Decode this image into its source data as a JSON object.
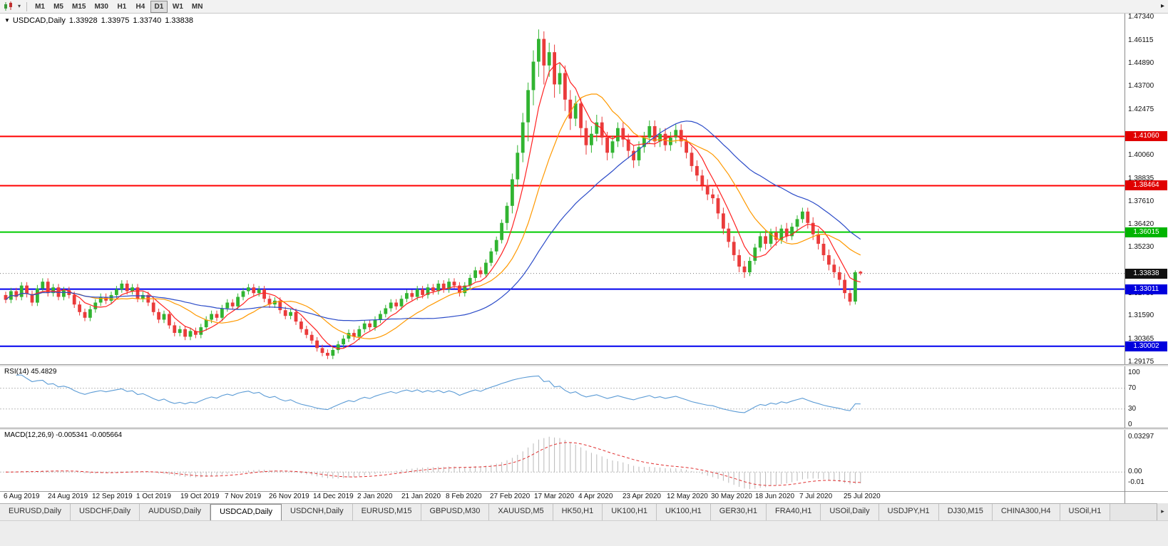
{
  "toolbar": {
    "timeframes": [
      "M1",
      "M5",
      "M15",
      "M30",
      "H1",
      "H4",
      "D1",
      "W1",
      "MN"
    ],
    "active_timeframe": "D1",
    "dropdown_arrow": "▾",
    "overflow_arrow": "▸"
  },
  "chart_header": {
    "menu_arrow": "▼",
    "title": "USDCAD,Daily",
    "open": "1.33928",
    "high": "1.33975",
    "low": "1.33740",
    "close": "1.33838"
  },
  "rsi_panel": {
    "title": "RSI(14)",
    "value": "45.4829",
    "axis_labels": [
      "100",
      "70",
      "30",
      "0"
    ],
    "levels": [
      70,
      30
    ],
    "line_color": "#5b9bd5"
  },
  "macd_panel": {
    "title": "MACD(12,26,9)",
    "values": "-0.005341 -0.005664",
    "axis_labels": [
      "0.03297",
      "0.00",
      "-0.01"
    ],
    "histogram_color": "#b9b9b9",
    "signal_color": "#e03030"
  },
  "price_axis_badges": [
    {
      "text": "1.41060",
      "color": "#e00000"
    },
    {
      "text": "1.38464",
      "color": "#e00000"
    },
    {
      "text": "1.36015",
      "color": "#00b400"
    },
    {
      "text": "1.33838",
      "color": "#111111"
    },
    {
      "text": "1.33011",
      "color": "#0000dd"
    },
    {
      "text": "1.30002",
      "color": "#0000dd"
    }
  ],
  "tabs": {
    "items": [
      "EURUSD,Daily",
      "USDCHF,Daily",
      "AUDUSD,Daily",
      "USDCAD,Daily",
      "USDCNH,Daily",
      "EURUSD,M15",
      "GBPUSD,M30",
      "XAUUSD,M5",
      "HK50,H1",
      "UK100,H1",
      "UK100,H1",
      "GER30,H1",
      "FRA40,H1",
      "USOil,Daily",
      "USDJPY,H1",
      "DJ30,M15",
      "CHINA300,H4",
      "USOil,H1"
    ],
    "active": "USDCAD,Daily",
    "scroll_arrow": "▸"
  },
  "chart_data": {
    "type": "candlestick",
    "title": "USDCAD,Daily",
    "ylim": [
      1.2905,
      1.475
    ],
    "y_ticks": [
      "1.47340",
      "1.46115",
      "1.44890",
      "1.43700",
      "1.42475",
      "1.40060",
      "1.38835",
      "1.37610",
      "1.36420",
      "1.35230",
      "1.32780",
      "1.31590",
      "1.30365",
      "1.29175"
    ],
    "x_labels": [
      "6 Aug 2019",
      "24 Aug 2019",
      "12 Sep 2019",
      "1 Oct 2019",
      "19 Oct 2019",
      "7 Nov 2019",
      "26 Nov 2019",
      "14 Dec 2019",
      "2 Jan 2020",
      "21 Jan 2020",
      "8 Feb 2020",
      "27 Feb 2020",
      "17 Mar 2020",
      "4 Apr 2020",
      "23 Apr 2020",
      "12 May 2020",
      "30 May 2020",
      "18 Jun 2020",
      "7 Jul 2020",
      "25 Jul 2020"
    ],
    "up_color": "#31b431",
    "down_color": "#ea3b3b",
    "hlines": [
      {
        "price": 1.4106,
        "color": "#ff0000",
        "width": 2
      },
      {
        "price": 1.38464,
        "color": "#ff0000",
        "width": 2
      },
      {
        "price": 1.36015,
        "color": "#00cc00",
        "width": 2
      },
      {
        "price": 1.33011,
        "color": "#0000ee",
        "width": 2
      },
      {
        "price": 1.30002,
        "color": "#0000ee",
        "width": 2
      }
    ],
    "current_price": 1.33838,
    "moving_averages": [
      {
        "period": 6,
        "color": "#ff2222"
      },
      {
        "period": 14,
        "color": "#ff9900"
      },
      {
        "period": 33,
        "color": "#2b4bc8"
      }
    ],
    "indicators": {
      "rsi": {
        "period": 14,
        "current": 45.4829
      },
      "macd": {
        "fast": 12,
        "slow": 26,
        "signal": 9,
        "current_macd": -0.005341,
        "current_signal": -0.005664
      },
      "rsi_ylim": [
        0,
        100
      ],
      "macd_ylim": [
        -0.018,
        0.04
      ]
    },
    "candles": [
      [
        1.327,
        1.3288,
        1.3227,
        1.3245
      ],
      [
        1.3245,
        1.3308,
        1.3227,
        1.329
      ],
      [
        1.329,
        1.3308,
        1.3242,
        1.326
      ],
      [
        1.326,
        1.3338,
        1.3242,
        1.332
      ],
      [
        1.332,
        1.3338,
        1.3257,
        1.3275
      ],
      [
        1.3275,
        1.3293,
        1.3212,
        1.323
      ],
      [
        1.323,
        1.3323,
        1.3212,
        1.3305
      ],
      [
        1.3305,
        1.3358,
        1.3287,
        1.334
      ],
      [
        1.334,
        1.3358,
        1.3262,
        1.328
      ],
      [
        1.328,
        1.3328,
        1.3262,
        1.331
      ],
      [
        1.331,
        1.3328,
        1.3242,
        1.326
      ],
      [
        1.326,
        1.3313,
        1.3242,
        1.3295
      ],
      [
        1.3295,
        1.3313,
        1.3252,
        1.327
      ],
      [
        1.327,
        1.3288,
        1.3202,
        1.322
      ],
      [
        1.322,
        1.3238,
        1.3162,
        1.318
      ],
      [
        1.318,
        1.3198,
        1.3132,
        1.315
      ],
      [
        1.315,
        1.3213,
        1.3132,
        1.3195
      ],
      [
        1.3195,
        1.3248,
        1.3177,
        1.323
      ],
      [
        1.323,
        1.3278,
        1.3212,
        1.326
      ],
      [
        1.326,
        1.3278,
        1.3222,
        1.324
      ],
      [
        1.324,
        1.3288,
        1.3222,
        1.327
      ],
      [
        1.327,
        1.3318,
        1.3252,
        1.33
      ],
      [
        1.33,
        1.3348,
        1.3282,
        1.333
      ],
      [
        1.333,
        1.3348,
        1.3272,
        1.329
      ],
      [
        1.329,
        1.3328,
        1.3272,
        1.331
      ],
      [
        1.331,
        1.3328,
        1.3232,
        1.325
      ],
      [
        1.325,
        1.3288,
        1.3232,
        1.327
      ],
      [
        1.327,
        1.3288,
        1.3212,
        1.323
      ],
      [
        1.323,
        1.3248,
        1.3162,
        1.318
      ],
      [
        1.318,
        1.3198,
        1.3122,
        1.314
      ],
      [
        1.314,
        1.3188,
        1.3122,
        1.317
      ],
      [
        1.317,
        1.3188,
        1.3092,
        1.311
      ],
      [
        1.311,
        1.3128,
        1.3052,
        1.307
      ],
      [
        1.307,
        1.3108,
        1.3052,
        1.309
      ],
      [
        1.309,
        1.3108,
        1.3032,
        1.305
      ],
      [
        1.305,
        1.3098,
        1.3032,
        1.308
      ],
      [
        1.308,
        1.3098,
        1.3042,
        1.306
      ],
      [
        1.306,
        1.3118,
        1.3042,
        1.31
      ],
      [
        1.31,
        1.3158,
        1.3082,
        1.314
      ],
      [
        1.314,
        1.3188,
        1.3122,
        1.317
      ],
      [
        1.317,
        1.3188,
        1.3132,
        1.315
      ],
      [
        1.315,
        1.3218,
        1.3132,
        1.32
      ],
      [
        1.32,
        1.3248,
        1.3182,
        1.323
      ],
      [
        1.323,
        1.3248,
        1.3192,
        1.321
      ],
      [
        1.321,
        1.3278,
        1.3192,
        1.326
      ],
      [
        1.326,
        1.3308,
        1.3242,
        1.329
      ],
      [
        1.329,
        1.3328,
        1.3272,
        1.331
      ],
      [
        1.331,
        1.3328,
        1.3262,
        1.328
      ],
      [
        1.328,
        1.3318,
        1.3262,
        1.33
      ],
      [
        1.33,
        1.3318,
        1.3232,
        1.325
      ],
      [
        1.325,
        1.3268,
        1.3202,
        1.322
      ],
      [
        1.322,
        1.3258,
        1.3202,
        1.324
      ],
      [
        1.324,
        1.3258,
        1.3172,
        1.319
      ],
      [
        1.319,
        1.3208,
        1.3142,
        1.316
      ],
      [
        1.316,
        1.3198,
        1.3142,
        1.318
      ],
      [
        1.318,
        1.3198,
        1.3112,
        1.313
      ],
      [
        1.313,
        1.3148,
        1.3072,
        1.309
      ],
      [
        1.309,
        1.3108,
        1.3042,
        1.306
      ],
      [
        1.306,
        1.3078,
        1.3012,
        1.303
      ],
      [
        1.303,
        1.3048,
        1.2972,
        1.299
      ],
      [
        1.299,
        1.3008,
        1.2947,
        1.2965
      ],
      [
        1.2965,
        1.2983,
        1.2932,
        1.295
      ],
      [
        1.295,
        1.2998,
        1.2932,
        1.298
      ],
      [
        1.298,
        1.3028,
        1.2962,
        1.301
      ],
      [
        1.301,
        1.3058,
        1.2992,
        1.304
      ],
      [
        1.304,
        1.3088,
        1.3022,
        1.307
      ],
      [
        1.307,
        1.3088,
        1.3032,
        1.305
      ],
      [
        1.305,
        1.3108,
        1.3032,
        1.309
      ],
      [
        1.309,
        1.3138,
        1.3072,
        1.312
      ],
      [
        1.312,
        1.3138,
        1.3082,
        1.31
      ],
      [
        1.31,
        1.3158,
        1.3082,
        1.314
      ],
      [
        1.314,
        1.3188,
        1.3122,
        1.317
      ],
      [
        1.317,
        1.3218,
        1.3152,
        1.32
      ],
      [
        1.32,
        1.3248,
        1.3182,
        1.323
      ],
      [
        1.323,
        1.3248,
        1.3192,
        1.321
      ],
      [
        1.321,
        1.3268,
        1.3192,
        1.325
      ],
      [
        1.325,
        1.3298,
        1.3232,
        1.328
      ],
      [
        1.328,
        1.3298,
        1.3242,
        1.326
      ],
      [
        1.326,
        1.3318,
        1.3242,
        1.33
      ],
      [
        1.33,
        1.3318,
        1.3252,
        1.327
      ],
      [
        1.327,
        1.3328,
        1.3252,
        1.331
      ],
      [
        1.331,
        1.3328,
        1.3272,
        1.329
      ],
      [
        1.329,
        1.3348,
        1.3272,
        1.333
      ],
      [
        1.333,
        1.3348,
        1.3282,
        1.33
      ],
      [
        1.33,
        1.3358,
        1.3282,
        1.334
      ],
      [
        1.334,
        1.3358,
        1.3302,
        1.332
      ],
      [
        1.332,
        1.3338,
        1.3262,
        1.328
      ],
      [
        1.328,
        1.3338,
        1.3262,
        1.332
      ],
      [
        1.332,
        1.3378,
        1.3302,
        1.336
      ],
      [
        1.336,
        1.3418,
        1.3342,
        1.34
      ],
      [
        1.34,
        1.3418,
        1.3362,
        1.338
      ],
      [
        1.338,
        1.3458,
        1.3362,
        1.344
      ],
      [
        1.344,
        1.3518,
        1.3422,
        1.35
      ],
      [
        1.35,
        1.3578,
        1.3482,
        1.356
      ],
      [
        1.356,
        1.3668,
        1.3542,
        1.365
      ],
      [
        1.365,
        1.3758,
        1.3612,
        1.374
      ],
      [
        1.374,
        1.391,
        1.37,
        1.388
      ],
      [
        1.388,
        1.406,
        1.384,
        1.402
      ],
      [
        1.402,
        1.423,
        1.397,
        1.418
      ],
      [
        1.418,
        1.439,
        1.408,
        1.435
      ],
      [
        1.435,
        1.456,
        1.427,
        1.45
      ],
      [
        1.45,
        1.467,
        1.442,
        1.462
      ],
      [
        1.462,
        1.466,
        1.438,
        1.448
      ],
      [
        1.448,
        1.46,
        1.442,
        1.455
      ],
      [
        1.455,
        1.459,
        1.431,
        1.438
      ],
      [
        1.438,
        1.449,
        1.433,
        1.444
      ],
      [
        1.444,
        1.448,
        1.424,
        1.43
      ],
      [
        1.43,
        1.435,
        1.414,
        1.42
      ],
      [
        1.42,
        1.432,
        1.416,
        1.428
      ],
      [
        1.428,
        1.431,
        1.41,
        1.415
      ],
      [
        1.415,
        1.419,
        1.401,
        1.406
      ],
      [
        1.406,
        1.416,
        1.402,
        1.412
      ],
      [
        1.412,
        1.422,
        1.408,
        1.418
      ],
      [
        1.418,
        1.421,
        1.406,
        1.41
      ],
      [
        1.41,
        1.413,
        1.398,
        1.402
      ],
      [
        1.402,
        1.411,
        1.399,
        1.408
      ],
      [
        1.408,
        1.418,
        1.405,
        1.415
      ],
      [
        1.415,
        1.418,
        1.405,
        1.409
      ],
      [
        1.409,
        1.412,
        1.399,
        1.403
      ],
      [
        1.403,
        1.406,
        1.394,
        1.398
      ],
      [
        1.398,
        1.408,
        1.395,
        1.405
      ],
      [
        1.405,
        1.413,
        1.402,
        1.41
      ],
      [
        1.41,
        1.419,
        1.407,
        1.416
      ],
      [
        1.416,
        1.419,
        1.405,
        1.408
      ],
      [
        1.408,
        1.415,
        1.405,
        1.412
      ],
      [
        1.412,
        1.415,
        1.403,
        1.406
      ],
      [
        1.406,
        1.413,
        1.403,
        1.41
      ],
      [
        1.41,
        1.417,
        1.407,
        1.414
      ],
      [
        1.414,
        1.417,
        1.405,
        1.408
      ],
      [
        1.408,
        1.411,
        1.399,
        1.402
      ],
      [
        1.402,
        1.405,
        1.392,
        1.395
      ],
      [
        1.395,
        1.398,
        1.387,
        1.39
      ],
      [
        1.39,
        1.393,
        1.382,
        1.385
      ],
      [
        1.385,
        1.388,
        1.377,
        1.38
      ],
      [
        1.38,
        1.383,
        1.375,
        1.378
      ],
      [
        1.378,
        1.38,
        1.367,
        1.37
      ],
      [
        1.37,
        1.373,
        1.359,
        1.362
      ],
      [
        1.362,
        1.365,
        1.352,
        1.355
      ],
      [
        1.355,
        1.358,
        1.345,
        1.348
      ],
      [
        1.348,
        1.351,
        1.339,
        1.342
      ],
      [
        1.342,
        1.345,
        1.336,
        1.339
      ],
      [
        1.339,
        1.347,
        1.337,
        1.345
      ],
      [
        1.345,
        1.354,
        1.343,
        1.352
      ],
      [
        1.352,
        1.36,
        1.35,
        1.358
      ],
      [
        1.358,
        1.361,
        1.351,
        1.354
      ],
      [
        1.354,
        1.362,
        1.352,
        1.36
      ],
      [
        1.36,
        1.363,
        1.353,
        1.356
      ],
      [
        1.356,
        1.364,
        1.354,
        1.362
      ],
      [
        1.362,
        1.365,
        1.355,
        1.358
      ],
      [
        1.358,
        1.365,
        1.356,
        1.363
      ],
      [
        1.363,
        1.369,
        1.361,
        1.367
      ],
      [
        1.367,
        1.373,
        1.365,
        1.371
      ],
      [
        1.371,
        1.373,
        1.362,
        1.365
      ],
      [
        1.365,
        1.368,
        1.356,
        1.359
      ],
      [
        1.359,
        1.362,
        1.351,
        1.354
      ],
      [
        1.354,
        1.357,
        1.345,
        1.348
      ],
      [
        1.348,
        1.351,
        1.34,
        1.343
      ],
      [
        1.343,
        1.346,
        1.336,
        1.339
      ],
      [
        1.339,
        1.342,
        1.332,
        1.335
      ],
      [
        1.335,
        1.338,
        1.325,
        1.328
      ],
      [
        1.328,
        1.33,
        1.3215,
        1.3235
      ],
      [
        1.3235,
        1.34,
        1.322,
        1.339
      ],
      [
        1.33928,
        1.33975,
        1.3374,
        1.33838
      ]
    ]
  }
}
